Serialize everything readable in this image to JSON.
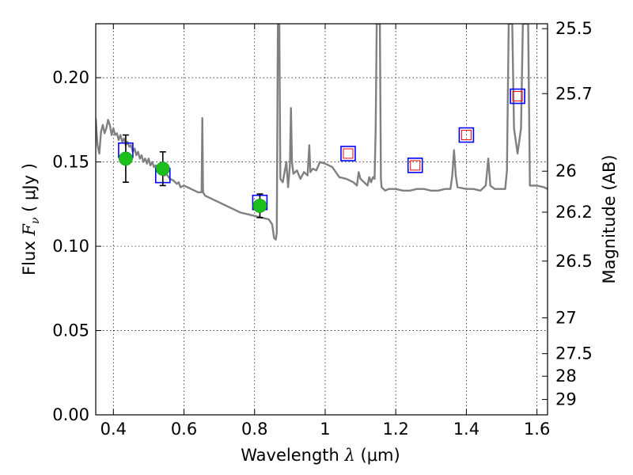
{
  "chart_data": {
    "type": "scatter",
    "xlabel": {
      "pre": "Wavelength  ",
      "sym": "λ",
      "unit": " (μm)"
    },
    "ylabel": {
      "pre": "Flux  ",
      "sym": "F",
      "sub": "ν",
      "unit": "  ( μJy )"
    },
    "y2label": "Magnitude (AB)",
    "xlim": [
      0.35,
      1.63
    ],
    "ylim": [
      0.0,
      0.232
    ],
    "grid": true,
    "x_ticks": [
      {
        "v": 0.4,
        "label": "0.4"
      },
      {
        "v": 0.6,
        "label": "0.6"
      },
      {
        "v": 0.8,
        "label": "0.8"
      },
      {
        "v": 1.0,
        "label": "1"
      },
      {
        "v": 1.2,
        "label": "1.2"
      },
      {
        "v": 1.4,
        "label": "1.4"
      },
      {
        "v": 1.6,
        "label": "1.6"
      }
    ],
    "y_ticks": [
      {
        "v": 0.0,
        "label": "0.00"
      },
      {
        "v": 0.05,
        "label": "0.05"
      },
      {
        "v": 0.1,
        "label": "0.10"
      },
      {
        "v": 0.15,
        "label": "0.15"
      },
      {
        "v": 0.2,
        "label": "0.20"
      }
    ],
    "y2_ticks": [
      {
        "mag": 25.5,
        "label": "25.5"
      },
      {
        "mag": 25.7,
        "label": "25.7"
      },
      {
        "mag": 26.0,
        "label": "26"
      },
      {
        "mag": 26.2,
        "label": "26.2"
      },
      {
        "mag": 26.5,
        "label": "26.5"
      },
      {
        "mag": 27.0,
        "label": "27"
      },
      {
        "mag": 27.5,
        "label": "27.5"
      },
      {
        "mag": 28.0,
        "label": "28"
      },
      {
        "mag": 29.0,
        "label": "29"
      }
    ],
    "series": [
      {
        "kind": "line",
        "color": "#808080",
        "points": [
          [
            0.35,
            0.176
          ],
          [
            0.355,
            0.16
          ],
          [
            0.36,
            0.155
          ],
          [
            0.365,
            0.168
          ],
          [
            0.37,
            0.172
          ],
          [
            0.375,
            0.167
          ],
          [
            0.38,
            0.17
          ],
          [
            0.385,
            0.175
          ],
          [
            0.39,
            0.172
          ],
          [
            0.395,
            0.166
          ],
          [
            0.4,
            0.17
          ],
          [
            0.405,
            0.166
          ],
          [
            0.41,
            0.167
          ],
          [
            0.415,
            0.163
          ],
          [
            0.42,
            0.166
          ],
          [
            0.425,
            0.162
          ],
          [
            0.43,
            0.164
          ],
          [
            0.435,
            0.16
          ],
          [
            0.44,
            0.162
          ],
          [
            0.445,
            0.159
          ],
          [
            0.45,
            0.16
          ],
          [
            0.455,
            0.156
          ],
          [
            0.46,
            0.158
          ],
          [
            0.465,
            0.154
          ],
          [
            0.47,
            0.156
          ],
          [
            0.475,
            0.152
          ],
          [
            0.48,
            0.154
          ],
          [
            0.485,
            0.15
          ],
          [
            0.49,
            0.152
          ],
          [
            0.495,
            0.149
          ],
          [
            0.5,
            0.152
          ],
          [
            0.505,
            0.148
          ],
          [
            0.51,
            0.15
          ],
          [
            0.515,
            0.147
          ],
          [
            0.52,
            0.148
          ],
          [
            0.525,
            0.145
          ],
          [
            0.53,
            0.146
          ],
          [
            0.535,
            0.143
          ],
          [
            0.54,
            0.145
          ],
          [
            0.545,
            0.142
          ],
          [
            0.55,
            0.143
          ],
          [
            0.56,
            0.14
          ],
          [
            0.57,
            0.139
          ],
          [
            0.58,
            0.137
          ],
          [
            0.585,
            0.138
          ],
          [
            0.59,
            0.135
          ],
          [
            0.6,
            0.136
          ],
          [
            0.61,
            0.135
          ],
          [
            0.62,
            0.134
          ],
          [
            0.63,
            0.133
          ],
          [
            0.64,
            0.132
          ],
          [
            0.645,
            0.132
          ],
          [
            0.65,
            0.132
          ],
          [
            0.652,
            0.176
          ],
          [
            0.654,
            0.132
          ],
          [
            0.66,
            0.13
          ],
          [
            0.68,
            0.128
          ],
          [
            0.7,
            0.126
          ],
          [
            0.72,
            0.124
          ],
          [
            0.74,
            0.122
          ],
          [
            0.76,
            0.12
          ],
          [
            0.78,
            0.119
          ],
          [
            0.8,
            0.118
          ],
          [
            0.82,
            0.117
          ],
          [
            0.84,
            0.116
          ],
          [
            0.85,
            0.113
          ],
          [
            0.855,
            0.105
          ],
          [
            0.86,
            0.104
          ],
          [
            0.863,
            0.108
          ],
          [
            0.866,
            0.232
          ],
          [
            0.87,
            0.232
          ],
          [
            0.873,
            0.14
          ],
          [
            0.88,
            0.138
          ],
          [
            0.89,
            0.15
          ],
          [
            0.895,
            0.135
          ],
          [
            0.9,
            0.148
          ],
          [
            0.903,
            0.182
          ],
          [
            0.906,
            0.15
          ],
          [
            0.91,
            0.143
          ],
          [
            0.92,
            0.145
          ],
          [
            0.93,
            0.14
          ],
          [
            0.94,
            0.144
          ],
          [
            0.95,
            0.142
          ],
          [
            0.955,
            0.16
          ],
          [
            0.958,
            0.144
          ],
          [
            0.965,
            0.146
          ],
          [
            0.975,
            0.145
          ],
          [
            0.985,
            0.15
          ],
          [
            1.0,
            0.149
          ],
          [
            1.02,
            0.147
          ],
          [
            1.04,
            0.141
          ],
          [
            1.06,
            0.14
          ],
          [
            1.08,
            0.138
          ],
          [
            1.09,
            0.136
          ],
          [
            1.095,
            0.144
          ],
          [
            1.1,
            0.14
          ],
          [
            1.12,
            0.136
          ],
          [
            1.125,
            0.141
          ],
          [
            1.13,
            0.138
          ],
          [
            1.135,
            0.141
          ],
          [
            1.14,
            0.14
          ],
          [
            1.143,
            0.17
          ],
          [
            1.146,
            0.232
          ],
          [
            1.155,
            0.232
          ],
          [
            1.158,
            0.14
          ],
          [
            1.16,
            0.135
          ],
          [
            1.17,
            0.133
          ],
          [
            1.18,
            0.134
          ],
          [
            1.2,
            0.134
          ],
          [
            1.22,
            0.133
          ],
          [
            1.24,
            0.133
          ],
          [
            1.26,
            0.134
          ],
          [
            1.28,
            0.134
          ],
          [
            1.3,
            0.133
          ],
          [
            1.32,
            0.133
          ],
          [
            1.34,
            0.134
          ],
          [
            1.355,
            0.134
          ],
          [
            1.36,
            0.142
          ],
          [
            1.365,
            0.157
          ],
          [
            1.37,
            0.142
          ],
          [
            1.375,
            0.135
          ],
          [
            1.4,
            0.134
          ],
          [
            1.42,
            0.134
          ],
          [
            1.44,
            0.133
          ],
          [
            1.455,
            0.136
          ],
          [
            1.462,
            0.152
          ],
          [
            1.468,
            0.136
          ],
          [
            1.48,
            0.134
          ],
          [
            1.5,
            0.134
          ],
          [
            1.51,
            0.134
          ],
          [
            1.515,
            0.145
          ],
          [
            1.52,
            0.232
          ],
          [
            1.53,
            0.232
          ],
          [
            1.535,
            0.17
          ],
          [
            1.545,
            0.155
          ],
          [
            1.555,
            0.17
          ],
          [
            1.56,
            0.232
          ],
          [
            1.575,
            0.232
          ],
          [
            1.58,
            0.136
          ],
          [
            1.6,
            0.136
          ],
          [
            1.62,
            0.135
          ],
          [
            1.63,
            0.134
          ]
        ]
      },
      {
        "kind": "points",
        "marker": "circle",
        "color": "#1dbf1d",
        "errorbars": true,
        "points": [
          {
            "x": 0.435,
            "y": 0.152,
            "err": 0.014
          },
          {
            "x": 0.54,
            "y": 0.146,
            "err": 0.01
          },
          {
            "x": 0.815,
            "y": 0.124,
            "err": 0.007
          }
        ]
      },
      {
        "kind": "points",
        "marker": "square",
        "color": "#0000ff",
        "points": [
          {
            "x": 0.435,
            "y": 0.157
          },
          {
            "x": 0.54,
            "y": 0.142
          },
          {
            "x": 0.815,
            "y": 0.126
          },
          {
            "x": 1.065,
            "y": 0.155
          },
          {
            "x": 1.255,
            "y": 0.148
          },
          {
            "x": 1.4,
            "y": 0.166
          },
          {
            "x": 1.545,
            "y": 0.189
          }
        ]
      },
      {
        "kind": "points",
        "marker": "square-small",
        "color": "#ff0000",
        "points": [
          {
            "x": 1.065,
            "y": 0.155
          },
          {
            "x": 1.255,
            "y": 0.148
          },
          {
            "x": 1.4,
            "y": 0.166
          },
          {
            "x": 1.545,
            "y": 0.189
          }
        ]
      }
    ]
  }
}
